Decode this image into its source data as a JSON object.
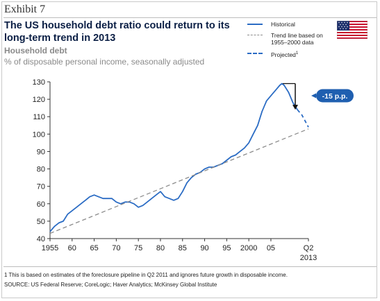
{
  "header": {
    "exhibit": "Exhibit 7",
    "title": "The US household debt ratio could return to its long-term trend in 2013",
    "subtitle": "Household debt",
    "unit": "% of disposable personal income, seasonally adjusted"
  },
  "legend": {
    "historical": "Historical",
    "trend": "Trend line based on 1955–2000 data",
    "projected": "Projected",
    "projected_mark": "1"
  },
  "flag_icon": "us-flag-icon",
  "callout": "-15 p.p.",
  "footnote": "1 This is based on estimates of the foreclosure pipeline in Q2 2011 and ignores future growth in disposable income.",
  "source": "SOURCE: US Federal Reserve; CoreLogic; Haver Analytics; McKinsey Global Institute",
  "colors": {
    "historical": "#2b6cc4",
    "trend": "#8c8c8c",
    "projected": "#2b6cc4",
    "callout_bg": "#1f5fb0",
    "text": "#0b1f45"
  },
  "chart_data": {
    "type": "line",
    "xlim": [
      1955,
      2013.5
    ],
    "ylim": [
      40,
      130
    ],
    "y_ticks": [
      40,
      50,
      60,
      70,
      80,
      90,
      100,
      110,
      120,
      130
    ],
    "x_ticks": [
      {
        "value": 1955,
        "label": "1955"
      },
      {
        "value": 1960,
        "label": "60"
      },
      {
        "value": 1965,
        "label": "65"
      },
      {
        "value": 1970,
        "label": "70"
      },
      {
        "value": 1975,
        "label": "75"
      },
      {
        "value": 1980,
        "label": "80"
      },
      {
        "value": 1985,
        "label": "85"
      },
      {
        "value": 1990,
        "label": "90"
      },
      {
        "value": 1995,
        "label": "95"
      },
      {
        "value": 2000,
        "label": "2000"
      },
      {
        "value": 2005,
        "label": "05"
      }
    ],
    "x_end_label": [
      "Q2",
      "2013"
    ],
    "x_end_value": 2013.5,
    "grid": false,
    "series": [
      {
        "name": "Historical",
        "style": "solid",
        "x": [
          1955,
          1956,
          1957,
          1958,
          1959,
          1960,
          1961,
          1962,
          1963,
          1964,
          1965,
          1966,
          1967,
          1968,
          1969,
          1970,
          1971,
          1972,
          1973,
          1974,
          1975,
          1976,
          1977,
          1978,
          1979,
          1980,
          1981,
          1982,
          1983,
          1984,
          1985,
          1986,
          1987,
          1988,
          1989,
          1990,
          1991,
          1992,
          1993,
          1994,
          1995,
          1996,
          1997,
          1998,
          1999,
          2000,
          2001,
          2002,
          2003,
          2004,
          2005,
          2006,
          2007,
          2007.5,
          2008,
          2009,
          2010,
          2011
        ],
        "y": [
          44,
          47,
          49,
          50,
          54,
          56,
          58,
          60,
          62,
          64,
          65,
          64,
          63,
          63,
          63,
          61,
          60,
          61,
          61,
          60,
          58,
          59,
          61,
          63,
          65,
          67,
          64,
          63,
          62,
          63,
          67,
          72,
          75,
          77,
          78,
          80,
          81,
          81,
          82,
          83,
          85,
          87,
          88,
          90,
          92,
          95,
          100,
          105,
          113,
          119,
          122,
          125,
          128,
          129,
          128,
          124,
          118,
          114
        ]
      },
      {
        "name": "Trend line based on 1955–2000 data",
        "style": "dashed",
        "x": [
          1955,
          2013.5
        ],
        "y": [
          43,
          103
        ]
      },
      {
        "name": "Projected",
        "style": "dashed",
        "x": [
          2011,
          2012,
          2013.5
        ],
        "y": [
          114,
          111,
          104
        ]
      }
    ],
    "annotation": {
      "label": "-15 p.p.",
      "x": 2008,
      "y_from": 129,
      "y_to": 114
    }
  }
}
